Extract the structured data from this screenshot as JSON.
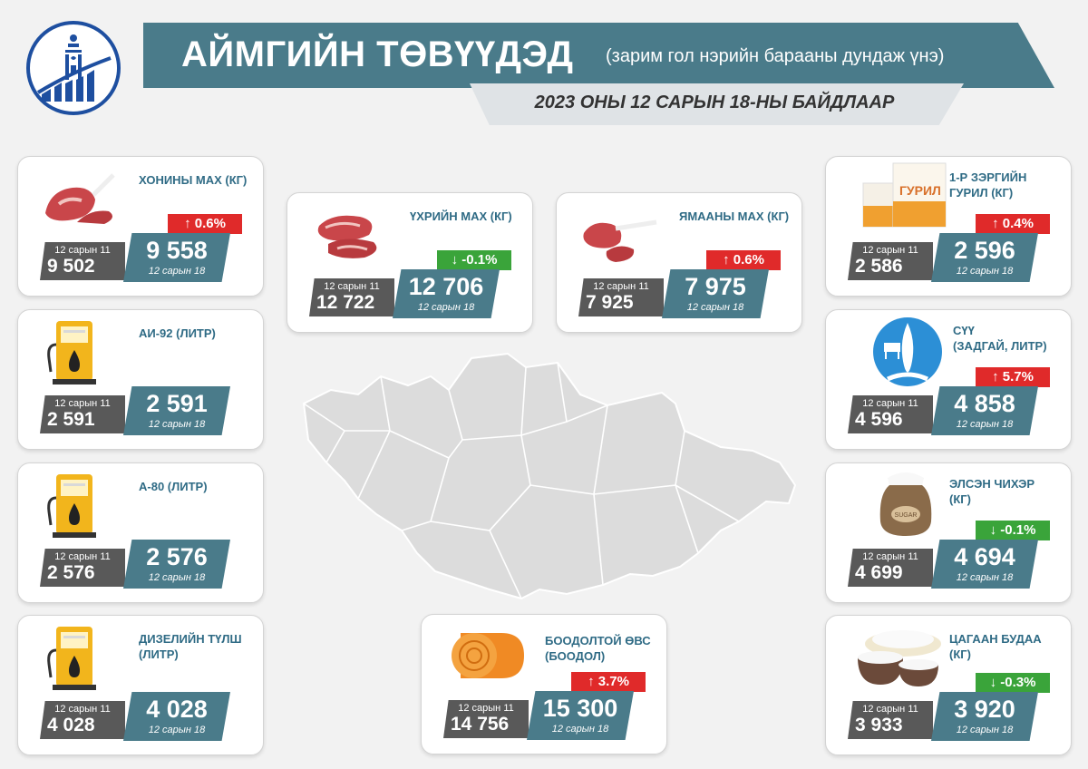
{
  "header": {
    "title": "АЙМГИЙН ТӨВҮҮДЭД",
    "subtitle": "(зарим гол нэрийн барааны дундаж үнэ)",
    "date": "2023 ОНЫ 12 САРЫН 18-НЫ БАЙДЛААР"
  },
  "colors": {
    "accent": "#4a7b8a",
    "old_price": "#595959",
    "increase": "#e02a2a",
    "decrease": "#3aa43a",
    "name_text": "#2f6b85"
  },
  "products": [
    {
      "name": "ХОНИНЫ МАХ (КГ)",
      "icon": "lamb-meat-icon",
      "change": "↑ 0.6%",
      "direction": "up",
      "old_label": "12 сарын 11",
      "old_value": "9 502",
      "new_value": "9 558",
      "new_label": "12 сарын 18"
    },
    {
      "name": "АИ-92 (ЛИТР)",
      "icon": "fuel-pump-icon",
      "change": "",
      "direction": "none",
      "old_label": "12 сарын 11",
      "old_value": "2 591",
      "new_value": "2 591",
      "new_label": "12 сарын 18"
    },
    {
      "name": "А-80 (ЛИТР)",
      "icon": "fuel-pump-icon",
      "change": "",
      "direction": "none",
      "old_label": "12 сарын 11",
      "old_value": "2 576",
      "new_value": "2 576",
      "new_label": "12 сарын 18"
    },
    {
      "name": "ДИЗЕЛИЙН ТҮЛШ\n(ЛИТР)",
      "icon": "fuel-pump-icon",
      "change": "",
      "direction": "none",
      "old_label": "12 сарын 11",
      "old_value": "4 028",
      "new_value": "4 028",
      "new_label": "12 сарын 18"
    },
    {
      "name": "ҮХРИЙН МАХ (КГ)",
      "icon": "beef-meat-icon",
      "change": "↓ -0.1%",
      "direction": "down",
      "old_label": "12 сарын 11",
      "old_value": "12 722",
      "new_value": "12 706",
      "new_label": "12 сарын 18"
    },
    {
      "name": "ЯМААНЫ МАХ (КГ)",
      "icon": "goat-meat-icon",
      "change": "↑ 0.6%",
      "direction": "up",
      "old_label": "12 сарын 11",
      "old_value": "7 925",
      "new_value": "7 975",
      "new_label": "12 сарын 18"
    },
    {
      "name": "БООДОЛТОЙ ӨВС\n(БООДОЛ)",
      "icon": "hay-bale-icon",
      "change": "↑ 3.7%",
      "direction": "up",
      "old_label": "12 сарын 11",
      "old_value": "14 756",
      "new_value": "15 300",
      "new_label": "12 сарын 18"
    },
    {
      "name": "1-Р ЗЭРГИЙН\nГУРИЛ (КГ)",
      "icon": "flour-bag-icon",
      "icon_text": "ГУРИЛ",
      "change": "↑ 0.4%",
      "direction": "up",
      "old_label": "12 сарын 11",
      "old_value": "2 586",
      "new_value": "2 596",
      "new_label": "12 сарын 18"
    },
    {
      "name": "СҮҮ\n(ЗАДГАЙ, ЛИТР)",
      "icon": "milk-cow-icon",
      "change": "↑ 5.7%",
      "direction": "up",
      "old_label": "12 сарын 11",
      "old_value": "4 596",
      "new_value": "4 858",
      "new_label": "12 сарын 18"
    },
    {
      "name": "ЭЛСЭН ЧИХЭР\n(КГ)",
      "icon": "sugar-sack-icon",
      "icon_text": "SUGAR",
      "change": "↓ -0.1%",
      "direction": "down",
      "old_label": "12 сарын 11",
      "old_value": "4 699",
      "new_value": "4 694",
      "new_label": "12 сарын 18"
    },
    {
      "name": "ЦАГААН БУДАА\n(КГ)",
      "icon": "rice-bowl-icon",
      "change": "↓ -0.3%",
      "direction": "down",
      "old_label": "12 сарын 11",
      "old_value": "3 933",
      "new_value": "3 920",
      "new_label": "12 сарын 18"
    }
  ]
}
